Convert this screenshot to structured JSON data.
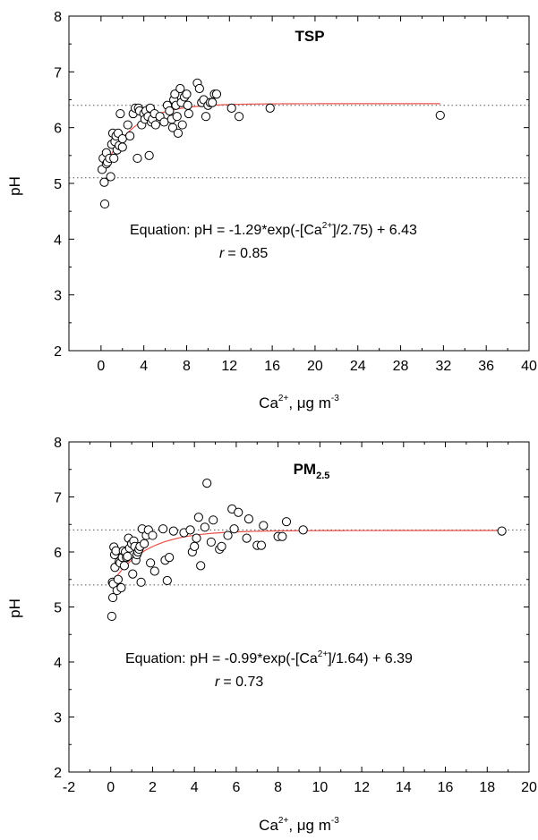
{
  "chart_data": [
    {
      "type": "scatter",
      "title": "TSP",
      "xlabel": "Ca2+, μg m-3",
      "ylabel": "pH",
      "xlim": [
        -3,
        40
      ],
      "ylim": [
        2,
        8
      ],
      "xticks": [
        0,
        4,
        8,
        12,
        16,
        20,
        24,
        28,
        32,
        36,
        40
      ],
      "yticks": [
        2,
        3,
        4,
        5,
        6,
        7,
        8
      ],
      "grid": false,
      "reference_lines": [
        6.4,
        5.1
      ],
      "fit": {
        "a": -1.29,
        "b": 2.75,
        "c": 6.43,
        "x_range": [
          0.1,
          31.7
        ]
      },
      "annotation": {
        "equation_prefix": "Equation: pH = -1.29*exp(-[Ca",
        "equation_sup": "2+",
        "equation_suffix": "]/2.75) + 6.43",
        "r_symbol": "r",
        "r_value": "=  0.85"
      },
      "series": [
        {
          "x": [
            0.1,
            0.2,
            0.3,
            0.35,
            0.5,
            0.5,
            0.6,
            0.8,
            0.9,
            1.0,
            1.1,
            1.2,
            1.3,
            1.4,
            1.5,
            1.6,
            1.7,
            1.8,
            2.0,
            2.0,
            2.5,
            2.7,
            3.0,
            3.2,
            3.4,
            3.5,
            3.6,
            3.8,
            4.0,
            4.1,
            4.2,
            4.4,
            4.5,
            4.6,
            4.7,
            4.8,
            5.0,
            5.1,
            5.5,
            5.9,
            6.2,
            6.4,
            6.6,
            6.7,
            6.8,
            6.9,
            7.0,
            7.1,
            7.2,
            7.4,
            7.5,
            7.6,
            7.8,
            8.0,
            8.1,
            8.2,
            9.0,
            9.2,
            9.4,
            9.6,
            9.8,
            10.0,
            10.2,
            10.4,
            10.6,
            10.8,
            12.2,
            12.9,
            15.8,
            31.7
          ],
          "y": [
            5.25,
            5.45,
            5.02,
            4.63,
            5.35,
            5.55,
            5.38,
            5.45,
            5.12,
            5.7,
            5.9,
            5.45,
            5.75,
            5.85,
            5.6,
            5.9,
            5.68,
            6.25,
            5.8,
            5.65,
            6.05,
            5.85,
            6.25,
            6.35,
            5.45,
            6.35,
            6.3,
            6.05,
            6.25,
            6.15,
            6.3,
            6.2,
            5.5,
            6.35,
            6.1,
            6.15,
            6.25,
            6.05,
            6.2,
            6.1,
            6.4,
            6.3,
            6.15,
            6.0,
            6.5,
            6.6,
            6.4,
            6.2,
            5.9,
            6.7,
            6.45,
            6.05,
            6.55,
            6.6,
            6.4,
            6.25,
            6.8,
            6.7,
            6.45,
            6.5,
            6.2,
            6.4,
            6.45,
            6.45,
            6.6,
            6.6,
            6.35,
            6.2,
            6.35,
            6.22
          ]
        }
      ]
    },
    {
      "type": "scatter",
      "title": "PM",
      "title_sub": "2.5",
      "xlabel": "Ca2+, μg m-3",
      "ylabel": "pH",
      "xlim": [
        -2,
        20
      ],
      "ylim": [
        2,
        8
      ],
      "xticks": [
        -2,
        0,
        2,
        4,
        6,
        8,
        10,
        12,
        14,
        16,
        18,
        20
      ],
      "yticks": [
        2,
        3,
        4,
        5,
        6,
        7,
        8
      ],
      "grid": false,
      "reference_lines": [
        6.4,
        5.4
      ],
      "fit": {
        "a": -0.99,
        "b": 1.64,
        "c": 6.39,
        "x_range": [
          0.05,
          18.7
        ]
      },
      "annotation": {
        "equation_prefix": "Equation: pH = -0.99*exp(-[Ca",
        "equation_sup": "2+",
        "equation_suffix": "]/1.64) + 6.39",
        "r_symbol": "r",
        "r_value": "=  0.73"
      },
      "series": [
        {
          "x": [
            0.05,
            0.08,
            0.1,
            0.12,
            0.15,
            0.18,
            0.2,
            0.25,
            0.3,
            0.35,
            0.4,
            0.45,
            0.5,
            0.55,
            0.6,
            0.65,
            0.7,
            0.75,
            0.8,
            0.85,
            0.9,
            1.0,
            1.05,
            1.1,
            1.15,
            1.2,
            1.25,
            1.3,
            1.35,
            1.4,
            1.45,
            1.5,
            1.6,
            1.7,
            1.8,
            1.9,
            2.0,
            2.1,
            2.5,
            2.6,
            2.7,
            2.8,
            3.0,
            3.5,
            3.8,
            3.9,
            4.0,
            4.1,
            4.2,
            4.3,
            4.5,
            4.6,
            4.8,
            4.9,
            5.2,
            5.3,
            5.6,
            5.8,
            5.9,
            6.1,
            6.5,
            6.6,
            7.0,
            7.2,
            7.3,
            8.0,
            8.2,
            8.4,
            9.2,
            18.7
          ],
          "y": [
            4.83,
            5.45,
            5.17,
            5.42,
            6.09,
            5.95,
            5.72,
            6.02,
            5.3,
            5.5,
            5.82,
            5.8,
            5.35,
            5.9,
            6.02,
            5.75,
            6.0,
            5.9,
            5.92,
            6.25,
            6.07,
            6.15,
            5.6,
            6.2,
            6.1,
            5.85,
            5.95,
            6.0,
            6.05,
            6.1,
            5.45,
            6.42,
            6.15,
            6.3,
            6.4,
            5.8,
            6.3,
            5.65,
            6.42,
            5.85,
            5.48,
            5.9,
            6.38,
            6.35,
            6.4,
            6.0,
            6.1,
            6.25,
            6.63,
            5.75,
            6.45,
            7.25,
            6.18,
            6.58,
            6.05,
            6.1,
            6.3,
            6.78,
            6.42,
            6.72,
            6.25,
            6.6,
            6.12,
            6.12,
            6.48,
            6.28,
            6.28,
            6.55,
            6.4,
            6.38
          ]
        }
      ]
    }
  ],
  "colors": {
    "axis": "#000000",
    "fit_line": "#e8504a",
    "reference_line": "#555555",
    "marker_stroke": "#000000",
    "marker_fill": "#ffffff"
  }
}
